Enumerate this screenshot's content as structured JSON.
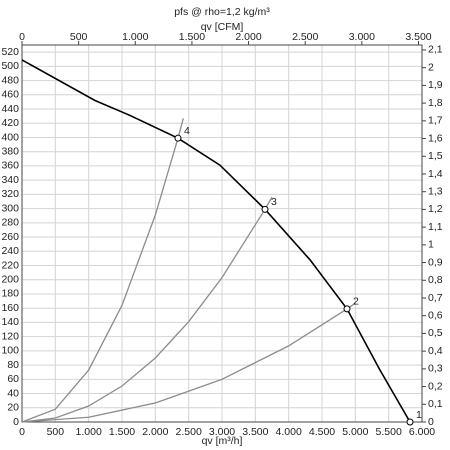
{
  "chart_data": {
    "type": "line",
    "title": "pfs @ rho=1,2 kg/m³",
    "x2label": "qv [CFM]",
    "xlabel": "qv [m³/h]",
    "grid": true,
    "xlim": [
      0,
      6000
    ],
    "x2lim": [
      0,
      3531
    ],
    "ylim": [
      0,
      530
    ],
    "y2lim": [
      0,
      2.128
    ],
    "xticks": [
      0,
      500,
      {
        "value": 1000,
        "label": "1.000"
      },
      {
        "value": 1500,
        "label": "1.500"
      },
      {
        "value": 2000,
        "label": "2.000"
      },
      {
        "value": 2500,
        "label": "2.500"
      },
      {
        "value": 3000,
        "label": "3.000"
      },
      {
        "value": 3500,
        "label": "3.500"
      },
      {
        "value": 4000,
        "label": "4.000"
      },
      {
        "value": 4500,
        "label": "4.500"
      },
      {
        "value": 5000,
        "label": "5.000"
      },
      {
        "value": 5500,
        "label": "5.500"
      },
      {
        "value": 6000,
        "label": "6.000"
      }
    ],
    "x2ticks": [
      0,
      500,
      {
        "value": 1000,
        "label": "1.000"
      },
      {
        "value": 1500,
        "label": "1.500"
      },
      {
        "value": 2000,
        "label": "2.000"
      },
      {
        "value": 2500,
        "label": "2.500"
      },
      {
        "value": 3000,
        "label": "3.000"
      },
      {
        "value": 3500,
        "label": "3.500"
      }
    ],
    "yticks": [
      0,
      20,
      40,
      60,
      80,
      100,
      120,
      140,
      160,
      180,
      200,
      220,
      240,
      260,
      280,
      300,
      320,
      340,
      360,
      380,
      400,
      420,
      440,
      460,
      480,
      500,
      520
    ],
    "y2ticks": [
      0,
      {
        "value": 0.1,
        "label": "0,1"
      },
      {
        "value": 0.2,
        "label": "0,2"
      },
      {
        "value": 0.3,
        "label": "0,3"
      },
      {
        "value": 0.4,
        "label": "0,4"
      },
      {
        "value": 0.5,
        "label": "0,5"
      },
      {
        "value": 0.6,
        "label": "0,6"
      },
      {
        "value": 0.7,
        "label": "0,7"
      },
      {
        "value": 0.8,
        "label": "0,8"
      },
      {
        "value": 0.9,
        "label": "0,9"
      },
      1,
      {
        "value": 1.1,
        "label": "1,1"
      },
      {
        "value": 1.2,
        "label": "1,2"
      },
      {
        "value": 1.3,
        "label": "1,3"
      },
      {
        "value": 1.4,
        "label": "1,4"
      },
      {
        "value": 1.5,
        "label": "1,5"
      },
      {
        "value": 1.6,
        "label": "1,6"
      },
      {
        "value": 1.7,
        "label": "1,7"
      },
      {
        "value": 1.8,
        "label": "1,8"
      },
      {
        "value": 1.9,
        "label": "1,9"
      },
      2,
      {
        "value": 2.1,
        "label": "2,1"
      }
    ],
    "series": [
      {
        "color": "#000000",
        "x": [
          0,
          1095,
          1620,
          2340,
          2970,
          3645,
          4320,
          4875,
          5370,
          5820
        ],
        "values": [
          509,
          452,
          431,
          399,
          361,
          299,
          228,
          159,
          73,
          0
        ]
      },
      {
        "color": "#8c8c8c",
        "x": [
          0,
          500,
          1000,
          1500,
          2000,
          2340,
          2420
        ],
        "values": [
          0,
          18,
          73,
          164,
          291,
          399,
          427
        ]
      },
      {
        "color": "#8c8c8c",
        "x": [
          0,
          500,
          1000,
          1500,
          2000,
          2500,
          3000,
          3645,
          3750
        ],
        "values": [
          0,
          5.6,
          22.5,
          50.6,
          90,
          141,
          203,
          299,
          316
        ]
      },
      {
        "color": "#8c8c8c",
        "x": [
          0,
          1000,
          2000,
          3000,
          4000,
          4875,
          5000
        ],
        "values": [
          0,
          6.7,
          26.8,
          60,
          107,
          159,
          167
        ]
      }
    ],
    "points": [
      {
        "label": "1",
        "x": 5820,
        "y": 0
      },
      {
        "label": "2",
        "x": 4875,
        "y": 159
      },
      {
        "label": "3",
        "x": 3645,
        "y": 299
      },
      {
        "label": "4",
        "x": 2340,
        "y": 399
      }
    ]
  }
}
